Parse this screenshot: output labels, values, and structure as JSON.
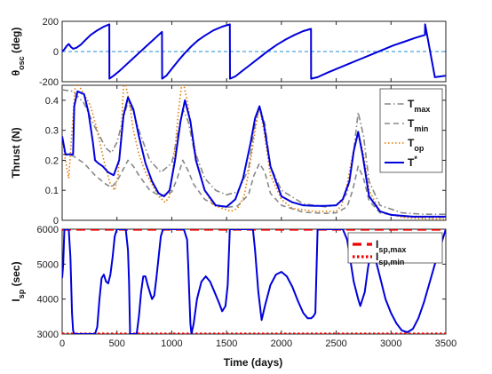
{
  "chart_data": [
    {
      "type": "line",
      "panel": "theta_osc",
      "ylabel": "θ_osc (deg)",
      "ylabel_main": "θ",
      "ylabel_sub": "osc",
      "ylabel_unit": " (deg)",
      "xlim": [
        0,
        3500
      ],
      "ylim": [
        -200,
        200
      ],
      "yticks": [
        -200,
        0,
        200
      ],
      "series": [
        {
          "color": "#0000dd",
          "style": "solid",
          "x": [
            0,
            20,
            40,
            60,
            80,
            100,
            130,
            170,
            210,
            260,
            320,
            380,
            430,
            431,
            470,
            520,
            580,
            640,
            700,
            760,
            820,
            880,
            911,
            912,
            950,
            1000,
            1060,
            1120,
            1180,
            1240,
            1300,
            1380,
            1460,
            1530,
            1531,
            1580,
            1640,
            1720,
            1800,
            1880,
            1960,
            2040,
            2120,
            2200,
            2270,
            2271,
            2330,
            2420,
            2520,
            2620,
            2720,
            2820,
            2920,
            3020,
            3120,
            3220,
            3310,
            3311,
            3400,
            3500
          ],
          "y": [
            0,
            15,
            35,
            50,
            30,
            18,
            25,
            45,
            75,
            110,
            140,
            165,
            180,
            -180,
            -160,
            -130,
            -90,
            -50,
            -10,
            30,
            70,
            110,
            130,
            -180,
            -160,
            -115,
            -60,
            -10,
            35,
            75,
            105,
            140,
            165,
            180,
            -180,
            -165,
            -130,
            -85,
            -40,
            5,
            45,
            80,
            110,
            135,
            150,
            -180,
            -170,
            -140,
            -110,
            -80,
            -50,
            -20,
            10,
            40,
            65,
            90,
            110,
            180,
            -170,
            -160
          ]
        }
      ],
      "reference_lines": [
        {
          "y": 0,
          "color": "#1f8fd6",
          "style": "dashed"
        }
      ],
      "grid": false
    },
    {
      "type": "line",
      "panel": "thrust",
      "ylabel": "Thrust (N)",
      "xlim": [
        0,
        3500
      ],
      "ylim": [
        0,
        0.45
      ],
      "yticks": [
        0,
        0.1,
        0.2,
        0.3,
        0.4
      ],
      "legend": "top-right",
      "series": [
        {
          "name": "T_max",
          "name_main": "T",
          "name_sub": "max",
          "name_sup": "",
          "color": "#888888",
          "style": "dashdot",
          "x": [
            0,
            100,
            200,
            300,
            400,
            450,
            500,
            550,
            600,
            650,
            700,
            800,
            900,
            1000,
            1050,
            1100,
            1150,
            1200,
            1300,
            1400,
            1500,
            1600,
            1700,
            1750,
            1800,
            1850,
            1900,
            2000,
            2200,
            2400,
            2500,
            2600,
            2650,
            2700,
            2750,
            2800,
            2900,
            3100,
            3300,
            3500
          ],
          "y": [
            0.435,
            0.43,
            0.39,
            0.31,
            0.24,
            0.225,
            0.26,
            0.33,
            0.395,
            0.36,
            0.3,
            0.2,
            0.16,
            0.19,
            0.28,
            0.37,
            0.33,
            0.24,
            0.14,
            0.1,
            0.085,
            0.095,
            0.17,
            0.3,
            0.38,
            0.32,
            0.18,
            0.1,
            0.055,
            0.045,
            0.05,
            0.09,
            0.2,
            0.36,
            0.28,
            0.13,
            0.05,
            0.025,
            0.02,
            0.02
          ]
        },
        {
          "name": "T_min",
          "name_main": "T",
          "name_sub": "min",
          "name_sup": "",
          "color": "#888888",
          "style": "dashed",
          "x": [
            0,
            100,
            200,
            300,
            400,
            450,
            500,
            550,
            600,
            650,
            700,
            800,
            900,
            1000,
            1050,
            1100,
            1150,
            1200,
            1300,
            1400,
            1500,
            1600,
            1700,
            1750,
            1800,
            1850,
            1900,
            2000,
            2200,
            2400,
            2500,
            2600,
            2650,
            2700,
            2750,
            2800,
            2900,
            3100,
            3300,
            3500
          ],
          "y": [
            0.22,
            0.215,
            0.19,
            0.15,
            0.12,
            0.11,
            0.13,
            0.165,
            0.2,
            0.18,
            0.15,
            0.1,
            0.08,
            0.095,
            0.14,
            0.2,
            0.165,
            0.12,
            0.07,
            0.05,
            0.043,
            0.048,
            0.085,
            0.15,
            0.19,
            0.16,
            0.09,
            0.05,
            0.027,
            0.023,
            0.025,
            0.045,
            0.1,
            0.18,
            0.14,
            0.065,
            0.025,
            0.013,
            0.01,
            0.01
          ]
        },
        {
          "name": "T_op",
          "name_main": "T",
          "name_sub": "op",
          "name_sup": "",
          "color": "#e07b00",
          "style": "dotted",
          "x": [
            0,
            30,
            60,
            90,
            120,
            150,
            200,
            260,
            320,
            380,
            440,
            480,
            510,
            540,
            560,
            580,
            610,
            650,
            700,
            760,
            820,
            880,
            940,
            980,
            1020,
            1060,
            1090,
            1110,
            1140,
            1180,
            1240,
            1300,
            1380,
            1460,
            1540,
            1600,
            1660,
            1720,
            1760,
            1800,
            1840,
            1900,
            2000,
            2100,
            2200,
            2300,
            2400,
            2500,
            2550,
            2600,
            2650,
            2700,
            2750,
            2800,
            2900,
            3100,
            3300,
            3500
          ],
          "y": [
            0.28,
            0.2,
            0.14,
            0.3,
            0.45,
            0.45,
            0.42,
            0.38,
            0.3,
            0.2,
            0.12,
            0.1,
            0.15,
            0.3,
            0.45,
            0.45,
            0.4,
            0.3,
            0.22,
            0.16,
            0.12,
            0.08,
            0.06,
            0.08,
            0.2,
            0.36,
            0.45,
            0.45,
            0.4,
            0.3,
            0.18,
            0.1,
            0.05,
            0.04,
            0.03,
            0.04,
            0.08,
            0.2,
            0.3,
            0.38,
            0.3,
            0.15,
            0.07,
            0.04,
            0.035,
            0.03,
            0.03,
            0.03,
            0.05,
            0.12,
            0.22,
            0.29,
            0.22,
            0.1,
            0.03,
            0.01,
            0.005,
            0.005
          ]
        },
        {
          "name": "T*",
          "name_main": "T",
          "name_sub": "",
          "name_sup": "*",
          "color": "#0000dd",
          "style": "solid",
          "x": [
            0,
            20,
            30,
            100,
            110,
            140,
            200,
            240,
            280,
            300,
            330,
            370,
            420,
            470,
            520,
            560,
            600,
            650,
            700,
            760,
            820,
            880,
            930,
            980,
            1030,
            1080,
            1120,
            1170,
            1220,
            1300,
            1400,
            1500,
            1580,
            1650,
            1720,
            1760,
            1800,
            1840,
            1900,
            2000,
            2100,
            2200,
            2300,
            2400,
            2500,
            2560,
            2620,
            2660,
            2700,
            2740,
            2800,
            2900,
            3000,
            3100,
            3200,
            3300,
            3400,
            3500
          ],
          "y": [
            0.28,
            0.24,
            0.22,
            0.22,
            0.38,
            0.43,
            0.42,
            0.36,
            0.26,
            0.2,
            0.19,
            0.18,
            0.16,
            0.15,
            0.2,
            0.35,
            0.41,
            0.37,
            0.28,
            0.19,
            0.13,
            0.09,
            0.08,
            0.1,
            0.2,
            0.33,
            0.4,
            0.33,
            0.2,
            0.1,
            0.05,
            0.045,
            0.07,
            0.14,
            0.26,
            0.34,
            0.38,
            0.32,
            0.18,
            0.08,
            0.06,
            0.05,
            0.048,
            0.048,
            0.05,
            0.07,
            0.13,
            0.23,
            0.295,
            0.22,
            0.08,
            0.03,
            0.018,
            0.015,
            0.012,
            0.012,
            0.012,
            0.012
          ]
        }
      ],
      "grid": false
    },
    {
      "type": "line",
      "panel": "isp",
      "ylabel": "I_sp (sec)",
      "ylabel_main": "I",
      "ylabel_sub": "sp",
      "ylabel_unit": " (sec)",
      "xlabel": "Time (days)",
      "xlim": [
        0,
        3500
      ],
      "ylim": [
        3000,
        6000
      ],
      "yticks": [
        3000,
        4000,
        5000,
        6000
      ],
      "xticks": [
        0,
        500,
        1000,
        1500,
        2000,
        2500,
        3000,
        3500
      ],
      "legend": "top-right",
      "series": [
        {
          "name": "I_sp,max",
          "name_main": "I",
          "name_sub": "sp,max",
          "color": "#ee0000",
          "style": "dashed-thick",
          "x": [
            0,
            3500
          ],
          "y": [
            6000,
            6000
          ]
        },
        {
          "name": "I_sp,min",
          "name_main": "I",
          "name_sub": "sp,min",
          "color": "#ee0000",
          "style": "dotted-thick",
          "x": [
            0,
            3500
          ],
          "y": [
            3000,
            3000
          ]
        },
        {
          "color": "#0000dd",
          "style": "solid",
          "x": [
            0,
            10,
            20,
            40,
            60,
            75,
            90,
            100,
            110,
            120,
            300,
            320,
            340,
            360,
            380,
            400,
            420,
            440,
            460,
            480,
            500,
            520,
            540,
            560,
            580,
            600,
            610,
            620,
            680,
            700,
            720,
            740,
            760,
            780,
            800,
            820,
            840,
            860,
            880,
            900,
            920,
            940,
            960,
            980,
            1000,
            1020,
            1040,
            1060,
            1080,
            1110,
            1140,
            1150,
            1160,
            1170,
            1180,
            1200,
            1230,
            1270,
            1310,
            1350,
            1390,
            1430,
            1460,
            1490,
            1510,
            1530,
            1700,
            1740,
            1760,
            1790,
            1820,
            1850,
            1900,
            1950,
            2000,
            2050,
            2100,
            2150,
            2200,
            2240,
            2270,
            2290,
            2310,
            2330,
            2560,
            2600,
            2630,
            2660,
            2700,
            2720,
            2760,
            2790,
            2810,
            2840,
            2870,
            2910,
            2950,
            3000,
            3050,
            3100,
            3150,
            3200,
            3250,
            3300,
            3350,
            3400,
            3450,
            3500
          ],
          "y": [
            4600,
            5000,
            6000,
            6000,
            6000,
            5200,
            3600,
            3100,
            3000,
            3000,
            3000,
            3200,
            4000,
            4600,
            4700,
            4500,
            4450,
            4700,
            5200,
            5800,
            6000,
            6000,
            6000,
            6000,
            6000,
            5400,
            4500,
            3000,
            3000,
            3500,
            4200,
            4650,
            4650,
            4400,
            4200,
            4000,
            4100,
            4600,
            5200,
            5800,
            6000,
            6000,
            6000,
            6000,
            6000,
            6000,
            6000,
            6000,
            6000,
            6000,
            5700,
            5000,
            4100,
            3300,
            3000,
            3300,
            4000,
            4500,
            4650,
            4500,
            4200,
            3900,
            3650,
            3800,
            4400,
            6000,
            6000,
            6000,
            5400,
            4200,
            3400,
            3800,
            4400,
            4700,
            4780,
            4650,
            4350,
            3950,
            3600,
            3450,
            3450,
            3500,
            3600,
            6000,
            6000,
            5700,
            5100,
            4500,
            4000,
            3800,
            4200,
            4900,
            5250,
            5250,
            5000,
            4500,
            4000,
            3600,
            3300,
            3100,
            3050,
            3150,
            3450,
            3900,
            4450,
            5000,
            5500,
            6000
          ]
        }
      ],
      "grid": false
    }
  ]
}
